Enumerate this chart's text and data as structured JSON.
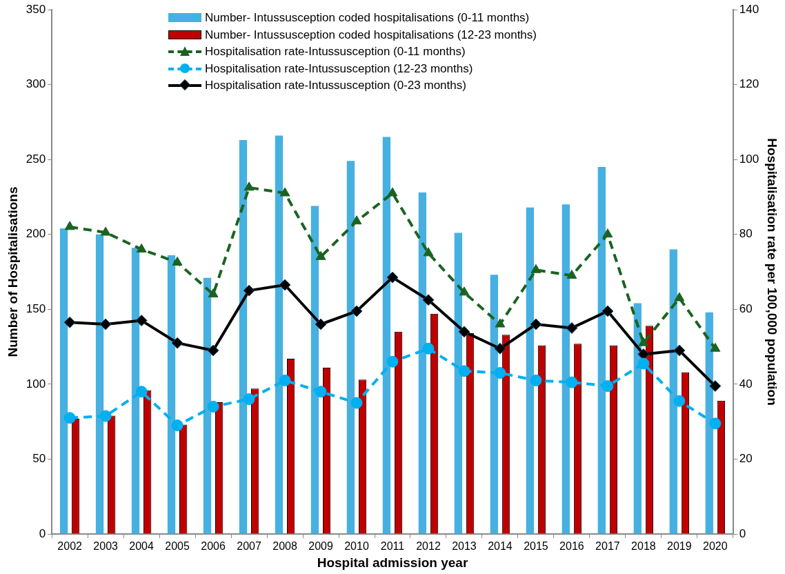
{
  "chart_data": {
    "type": "bar",
    "xlabel": "Hospital admission year",
    "ylabel": "Number of Hospitalisations",
    "y2label": "Hospitalisation rate per 100,000 population",
    "categories": [
      "2002",
      "2003",
      "2004",
      "2005",
      "2006",
      "2007",
      "2008",
      "2009",
      "2010",
      "2011",
      "2012",
      "2013",
      "2014",
      "2015",
      "2016",
      "2017",
      "2018",
      "2019",
      "2020"
    ],
    "series": [
      {
        "name": "Number- Intussusception coded hospitalisations (0-11 months)",
        "color": "#46b0e1",
        "values": [
          204,
          200,
          191,
          186,
          171,
          263,
          266,
          219,
          249,
          265,
          228,
          201,
          173,
          218,
          220,
          245,
          154,
          190,
          148
        ]
      },
      {
        "name": "Number- Intussusception coded hospitalisations (12-23 months)",
        "color": "#c00000",
        "values": [
          77,
          79,
          96,
          73,
          88,
          97,
          117,
          111,
          103,
          135,
          147,
          134,
          133,
          126,
          127,
          126,
          139,
          108,
          89
        ]
      },
      {
        "name": "Hospitalisation rate-Intussusception (0-11 months)",
        "type": "line",
        "axis": "y2",
        "color": "#1a6321",
        "marker": "triangle",
        "line_style": "dashed",
        "values": [
          82,
          80.5,
          76,
          72.5,
          64,
          92.5,
          91,
          74,
          83.5,
          91,
          75,
          64.5,
          56,
          70.5,
          69,
          80,
          51,
          63,
          49.5
        ]
      },
      {
        "name": "Hospitalisation rate-Intussusception (12-23 months)",
        "type": "line",
        "axis": "y2",
        "color": "#00b0f0",
        "marker": "circle",
        "line_style": "dashed",
        "values": [
          31,
          31.5,
          38,
          29,
          34,
          36,
          41,
          38,
          35,
          46,
          49.5,
          43.5,
          43,
          41,
          40.5,
          39.5,
          45.5,
          35.5,
          29.5
        ]
      },
      {
        "name": "Hospitalisation rate-Intussusception (0-23 months)",
        "type": "line",
        "axis": "y2",
        "color": "#000000",
        "marker": "diamond",
        "line_style": "solid",
        "values": [
          56.5,
          56,
          57,
          51,
          49,
          65,
          66.5,
          56,
          59.5,
          68.5,
          62.5,
          54,
          49.5,
          56,
          55,
          59.5,
          48,
          49,
          39.5
        ]
      }
    ],
    "ylim": [
      0,
      350
    ],
    "yticks": [
      0,
      50,
      100,
      150,
      200,
      250,
      300,
      350
    ],
    "y2lim": [
      0,
      140
    ],
    "y2ticks": [
      0,
      20,
      40,
      60,
      80,
      100,
      120,
      140
    ],
    "grid": false,
    "legend": "top"
  }
}
